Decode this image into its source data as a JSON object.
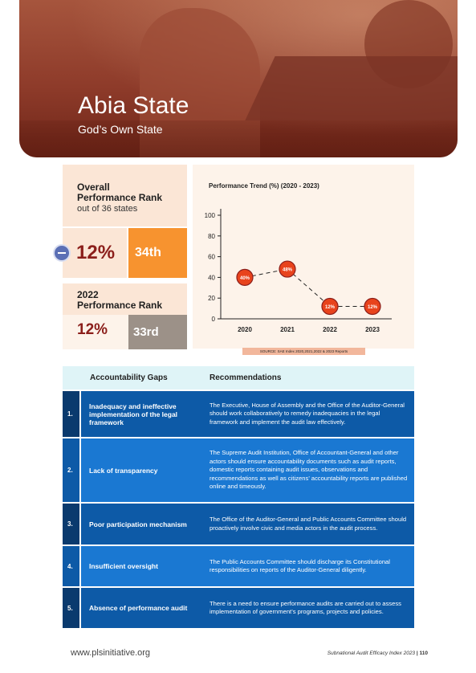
{
  "hero": {
    "title": "Abia State",
    "subtitle": "God’s Own State"
  },
  "rank": {
    "overall_line1": "Overall",
    "overall_line2": "Performance Rank",
    "overall_sub": "out of 36 states",
    "current_pct": "12%",
    "current_rank": "34th",
    "prev_line1": "2022",
    "prev_line2": "Performance Rank",
    "prev_pct": "12%",
    "prev_rank": "33rd",
    "trend_icon": "minus-icon"
  },
  "chart_data": {
    "type": "line",
    "title": "Performance Trend (%) (2020 - 2023)",
    "categories": [
      "2020",
      "2021",
      "2022",
      "2023"
    ],
    "values": [
      40,
      48,
      12,
      12
    ],
    "labels": [
      "40%",
      "48%",
      "12%",
      "12%"
    ],
    "ylim": [
      0,
      100
    ],
    "yticks": [
      0,
      20,
      40,
      60,
      80,
      100
    ],
    "line_style": "dashed",
    "marker_color": "#e8431c"
  },
  "source_text": "SOURCE: SAE Index 2020,2021,2022 & 2023 Reports",
  "table": {
    "headers": {
      "gaps": "Accountability Gaps",
      "recs": "Recommendations"
    },
    "rows": [
      {
        "num": "1.",
        "gap": "Inadequacy and ineffective implementation of the legal framework",
        "rec": "The Executive, House of Assembly and the Office of the Auditor-General should work collaboratively to remedy inadequacies in the legal framework and implement the audit law effectively."
      },
      {
        "num": "2.",
        "gap": "Lack of transparency",
        "rec": "The Supreme Audit Institution, Office of Accountant-General and other actors should ensure accountability documents such as audit reports, domestic reports containing audit issues, observations and recommendations as well as citizens’ accountability reports are published online and timeously."
      },
      {
        "num": "3.",
        "gap": "Poor participation mechanism",
        "rec": "The Office of the Auditor-General and Public Accounts Committee should proactively involve civic and media actors in the audit process."
      },
      {
        "num": "4.",
        "gap": "Insufficient oversight",
        "rec": "The Public Accounts Committee should discharge its Constitutional responsibilities on reports of the Auditor-General diligently."
      },
      {
        "num": "5.",
        "gap": "Absence of performance audit",
        "rec": "There is a need to ensure performance audits are carried out to assess implementation of government’s programs, projects and policies."
      }
    ]
  },
  "footer": {
    "url": "www.plsinitiative.org",
    "publication": "Subnational Audit Efficacy Index 2023",
    "separator": "|",
    "page": "110"
  }
}
